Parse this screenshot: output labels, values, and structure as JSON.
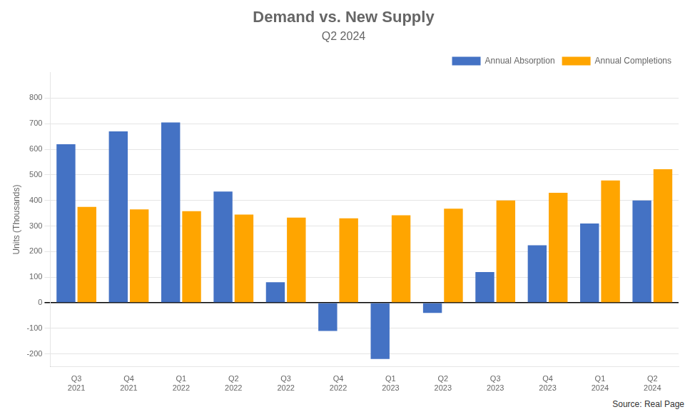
{
  "chart_data": {
    "type": "bar",
    "title": "Demand vs. New Supply",
    "subtitle": "Q2 2024",
    "ylabel": "Units (Thousands)",
    "categories": [
      "Q3\n2021",
      "Q4\n2021",
      "Q1\n2022",
      "Q2\n2022",
      "Q3\n2022",
      "Q4\n2022",
      "Q1\n2023",
      "Q2\n2023",
      "Q3\n2023",
      "Q4\n2023",
      "Q1\n2024",
      "Q2\n2024"
    ],
    "series": [
      {
        "name": "Annual Absorption",
        "color": "#4472C4",
        "values": [
          620,
          670,
          705,
          435,
          80,
          -110,
          -220,
          -40,
          120,
          225,
          310,
          400
        ]
      },
      {
        "name": "Annual Completions",
        "color": "#FFA500",
        "values": [
          375,
          365,
          358,
          345,
          333,
          330,
          342,
          368,
          400,
          430,
          478,
          522
        ]
      }
    ],
    "ylim": [
      -250,
      900
    ],
    "yticks": [
      -200,
      -100,
      0,
      100,
      200,
      300,
      400,
      500,
      600,
      700,
      800
    ],
    "grid": true,
    "legend": "upper right",
    "annotations": [
      "Source: Real Page"
    ]
  }
}
